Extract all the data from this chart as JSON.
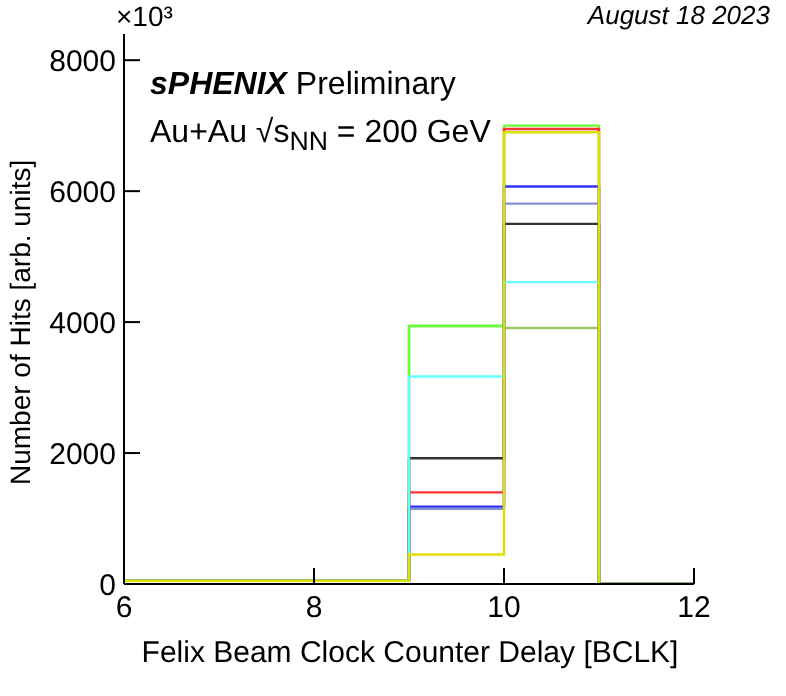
{
  "chart_data": {
    "type": "histogram",
    "xlabel": "Felix Beam Clock Counter Delay [BCLK]",
    "ylabel": "Number of Hits [arb. units]",
    "annotations": [
      "×10³",
      "August 18 2023",
      "sPHENIX Preliminary",
      "Au+Au √s$_{NN}$ = 200 GeV"
    ],
    "bins": [
      6,
      7,
      8,
      9,
      10,
      11,
      12
    ],
    "series": [
      {
        "color": "#99cc66",
        "values": [
          50,
          50,
          50,
          3940,
          3910,
          0
        ]
      },
      {
        "color": "#66ff33",
        "values": [
          50,
          50,
          50,
          3940,
          7000,
          0
        ]
      },
      {
        "color": "#ff3333",
        "values": [
          50,
          50,
          50,
          1400,
          6950,
          0
        ]
      },
      {
        "color": "#3333ff",
        "values": [
          50,
          50,
          50,
          1180,
          6070,
          0
        ]
      },
      {
        "color": "#7f8fd8",
        "values": [
          50,
          50,
          50,
          1150,
          5810,
          0
        ]
      },
      {
        "color": "#333333",
        "values": [
          50,
          50,
          50,
          1920,
          5500,
          0
        ]
      },
      {
        "color": "#66ffff",
        "values": [
          50,
          50,
          50,
          3170,
          4610,
          0
        ]
      },
      {
        "color": "#e0e000",
        "values": [
          50,
          50,
          50,
          450,
          6900,
          0
        ]
      }
    ],
    "xlim": [
      6,
      12
    ],
    "xticks": [
      6,
      8,
      10,
      12
    ],
    "ylim": [
      0,
      8400
    ],
    "yticks": [
      0,
      2000,
      4000,
      6000,
      8000
    ],
    "grid": false,
    "legend": false
  }
}
